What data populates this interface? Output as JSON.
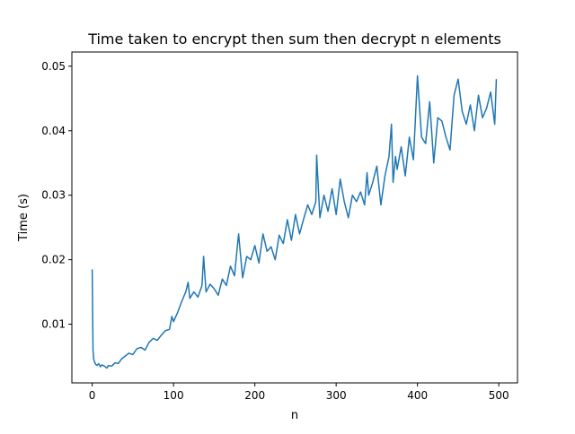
{
  "chart_data": {
    "type": "line",
    "title": "Time taken to encrypt then sum then decrypt n elements",
    "xlabel": "n",
    "ylabel": "Time (s)",
    "xlim": [
      -25,
      523
    ],
    "ylim": [
      0.0009,
      0.0522
    ],
    "x_ticks": [
      0,
      100,
      200,
      300,
      400,
      500
    ],
    "x_tick_labels": [
      "0",
      "100",
      "200",
      "300",
      "400",
      "500"
    ],
    "y_ticks": [
      0.01,
      0.02,
      0.03,
      0.04,
      0.05
    ],
    "y_tick_labels": [
      "0.01",
      "0.02",
      "0.03",
      "0.04",
      "0.05"
    ],
    "grid": false,
    "line_color": "#1f77b4",
    "series": [
      {
        "x": [
          0,
          1,
          2,
          4,
          6,
          8,
          10,
          12,
          15,
          18,
          20,
          24,
          28,
          32,
          36,
          40,
          45,
          50,
          55,
          60,
          65,
          70,
          75,
          80,
          85,
          90,
          95,
          98,
          100,
          105,
          110,
          115,
          118,
          120,
          125,
          130,
          135,
          137,
          140,
          145,
          150,
          155,
          160,
          165,
          170,
          175,
          180,
          185,
          190,
          195,
          200,
          205,
          210,
          215,
          220,
          225,
          230,
          235,
          240,
          245,
          250,
          255,
          260,
          265,
          270,
          275,
          276,
          280,
          285,
          290,
          295,
          300,
          305,
          310,
          315,
          320,
          325,
          330,
          335,
          338,
          340,
          345,
          350,
          355,
          360,
          365,
          368,
          370,
          373,
          375,
          380,
          385,
          390,
          395,
          400,
          405,
          410,
          415,
          420,
          425,
          430,
          435,
          440,
          445,
          450,
          455,
          460,
          465,
          470,
          475,
          480,
          485,
          490,
          495,
          497
        ],
        "y": [
          0.0185,
          0.006,
          0.0045,
          0.0038,
          0.0036,
          0.0039,
          0.0034,
          0.0037,
          0.0035,
          0.0032,
          0.0036,
          0.0035,
          0.004,
          0.0039,
          0.0046,
          0.005,
          0.0055,
          0.0053,
          0.0062,
          0.0064,
          0.006,
          0.0072,
          0.0078,
          0.0075,
          0.0083,
          0.009,
          0.0092,
          0.0112,
          0.0104,
          0.0118,
          0.0135,
          0.015,
          0.0165,
          0.014,
          0.015,
          0.0142,
          0.016,
          0.0205,
          0.015,
          0.0162,
          0.0155,
          0.0145,
          0.017,
          0.016,
          0.019,
          0.0175,
          0.024,
          0.0172,
          0.0205,
          0.02,
          0.0222,
          0.0195,
          0.024,
          0.0213,
          0.022,
          0.02,
          0.0238,
          0.0225,
          0.0262,
          0.023,
          0.027,
          0.024,
          0.0263,
          0.0285,
          0.027,
          0.029,
          0.0362,
          0.0265,
          0.03,
          0.0275,
          0.031,
          0.027,
          0.0325,
          0.029,
          0.0265,
          0.03,
          0.029,
          0.0305,
          0.0285,
          0.0335,
          0.03,
          0.032,
          0.0345,
          0.0285,
          0.033,
          0.036,
          0.041,
          0.032,
          0.036,
          0.034,
          0.0375,
          0.033,
          0.039,
          0.0355,
          0.0485,
          0.039,
          0.038,
          0.0445,
          0.035,
          0.042,
          0.0415,
          0.039,
          0.037,
          0.0455,
          0.048,
          0.043,
          0.041,
          0.044,
          0.04,
          0.0455,
          0.042,
          0.0435,
          0.046,
          0.041,
          0.048
        ]
      }
    ]
  }
}
